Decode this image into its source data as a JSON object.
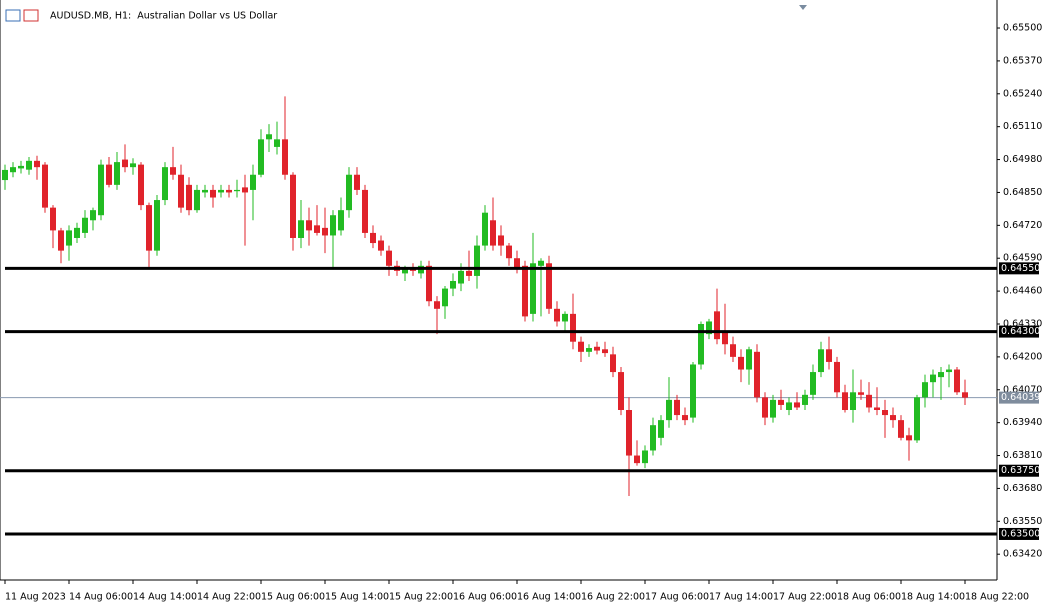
{
  "chart_data": {
    "type": "candlestick",
    "title": "AUDUSD.MB, H1:  Australian Dollar vs US Dollar",
    "categories": [
      "11 Aug 2023",
      null,
      null,
      null,
      null,
      null,
      null,
      null,
      "14 Aug 06:00",
      null,
      null,
      null,
      null,
      null,
      null,
      null,
      "14 Aug 14:00",
      null,
      null,
      null,
      null,
      null,
      null,
      null,
      "14 Aug 22:00",
      null,
      null,
      null,
      null,
      null,
      null,
      null,
      "15 Aug 06:00",
      null,
      null,
      null,
      null,
      null,
      null,
      null,
      "15 Aug 14:00",
      null,
      null,
      null,
      null,
      null,
      null,
      null,
      "15 Aug 22:00",
      null,
      null,
      null,
      null,
      null,
      null,
      null,
      "16 Aug 06:00",
      null,
      null,
      null,
      null,
      null,
      null,
      null,
      "16 Aug 14:00",
      null,
      null,
      null,
      null,
      null,
      null,
      null,
      "16 Aug 22:00",
      null,
      null,
      null,
      null,
      null,
      null,
      null,
      "17 Aug 06:00",
      null,
      null,
      null,
      null,
      null,
      null,
      null,
      "17 Aug 14:00",
      null,
      null,
      null,
      null,
      null,
      null,
      null,
      "17 Aug 22:00",
      null,
      null,
      null,
      null,
      null,
      null,
      null,
      "18 Aug 06:00",
      null,
      null,
      null,
      null,
      null,
      null,
      null,
      "18 Aug 14:00",
      null,
      null,
      null,
      null,
      null,
      null,
      null,
      "18 Aug 22:00"
    ],
    "open": [
      0.64899,
      0.6493,
      0.64945,
      0.6494,
      0.64975,
      0.6496,
      0.6479,
      0.647,
      0.6464,
      0.6467,
      0.6469,
      0.6474,
      0.6476,
      0.6496,
      0.6488,
      0.6498,
      0.6495,
      0.6496,
      0.648,
      0.6462,
      0.6482,
      0.6495,
      0.6492,
      0.6488,
      0.6478,
      0.6485,
      0.6486,
      0.6485,
      0.6486,
      0.64855,
      0.6487,
      0.6486,
      0.6492,
      0.6506,
      0.6503,
      0.6506,
      0.6492,
      0.6467,
      0.6474,
      0.6472,
      0.6471,
      0.6468,
      0.647,
      0.6478,
      0.6492,
      0.6486,
      0.6469,
      0.6466,
      0.6462,
      0.6456,
      0.6453,
      0.6455,
      0.6453,
      0.6456,
      0.6442,
      0.644,
      0.6447,
      0.6449,
      0.6454,
      0.6452,
      0.6464,
      0.6474,
      0.6468,
      0.6464,
      0.6459,
      0.6456,
      0.6437,
      0.6456,
      0.6457,
      0.6439,
      0.6434,
      0.6437,
      0.6426,
      0.6422,
      0.6424,
      0.6423,
      0.6421,
      0.6414,
      0.6399,
      0.6381,
      0.6378,
      0.6383,
      0.6388,
      0.6395,
      0.6403,
      0.6397,
      0.6396,
      0.6417,
      0.6429,
      0.6438,
      0.643,
      0.6425,
      0.642,
      0.6415,
      0.6422,
      0.6404,
      0.6396,
      0.6403,
      0.6399,
      0.6402,
      0.6401,
      0.6405,
      0.6414,
      0.6423,
      0.6418,
      0.6406,
      0.6399,
      0.6406,
      0.6405,
      0.64,
      0.6399,
      0.6397,
      0.6395,
      0.6389,
      0.6387,
      0.6404,
      0.641,
      0.6412,
      0.6414,
      0.6415,
      0.6406
    ],
    "high": [
      0.6496,
      0.6497,
      0.64975,
      0.6499,
      0.64995,
      0.6497,
      0.648,
      0.6471,
      0.6472,
      0.6473,
      0.6478,
      0.6479,
      0.6498,
      0.6499,
      0.6501,
      0.6504,
      0.64985,
      0.6497,
      0.6481,
      0.6484,
      0.6497,
      0.6503,
      0.6496,
      0.6491,
      0.6488,
      0.6488,
      0.6488,
      0.6488,
      0.6488,
      0.649,
      0.6492,
      0.6496,
      0.651,
      0.6512,
      0.6513,
      0.6523,
      0.6493,
      0.6482,
      0.6479,
      0.648,
      0.6479,
      0.6478,
      0.6483,
      0.6495,
      0.6495,
      0.6488,
      0.6472,
      0.6468,
      0.6464,
      0.6458,
      0.6456,
      0.6457,
      0.6458,
      0.6458,
      0.6444,
      0.6448,
      0.6453,
      0.6457,
      0.6462,
      0.6468,
      0.648,
      0.6483,
      0.6472,
      0.6465,
      0.6462,
      0.6458,
      0.6469,
      0.6459,
      0.646,
      0.6442,
      0.6438,
      0.6445,
      0.6428,
      0.6425,
      0.6426,
      0.6426,
      0.6424,
      0.6416,
      0.6404,
      0.6387,
      0.6385,
      0.6396,
      0.6397,
      0.6412,
      0.6405,
      0.64,
      0.6418,
      0.6434,
      0.6435,
      0.6447,
      0.6441,
      0.6428,
      0.6423,
      0.6424,
      0.6425,
      0.6406,
      0.6405,
      0.6407,
      0.6404,
      0.6406,
      0.6407,
      0.6417,
      0.6426,
      0.6428,
      0.642,
      0.6409,
      0.6415,
      0.6411,
      0.641,
      0.6408,
      0.6403,
      0.64,
      0.6397,
      0.6392,
      0.6405,
      0.6413,
      0.6415,
      0.6416,
      0.6417,
      0.6416,
      0.6411
    ],
    "low": [
      0.6486,
      0.6491,
      0.64925,
      0.6492,
      0.649,
      0.6477,
      0.6463,
      0.6457,
      0.6458,
      0.6465,
      0.6467,
      0.647,
      0.6474,
      0.6487,
      0.6486,
      0.6493,
      0.6492,
      0.6478,
      0.6455,
      0.646,
      0.648,
      0.649,
      0.6477,
      0.6476,
      0.6477,
      0.6483,
      0.6479,
      0.6483,
      0.6483,
      0.6483,
      0.6464,
      0.6474,
      0.6491,
      0.6501,
      0.65,
      0.649,
      0.6462,
      0.6463,
      0.6464,
      0.6468,
      0.6461,
      0.6455,
      0.6468,
      0.6475,
      0.6484,
      0.6467,
      0.6463,
      0.646,
      0.6452,
      0.6452,
      0.645,
      0.6452,
      0.6451,
      0.644,
      0.6429,
      0.6435,
      0.6444,
      0.6446,
      0.645,
      0.6447,
      0.6462,
      0.6462,
      0.646,
      0.6456,
      0.6453,
      0.6434,
      0.6434,
      0.6436,
      0.6437,
      0.6432,
      0.643,
      0.6423,
      0.6418,
      0.642,
      0.6421,
      0.642,
      0.6412,
      0.6397,
      0.6365,
      0.6377,
      0.6376,
      0.6381,
      0.6385,
      0.6392,
      0.6395,
      0.6393,
      0.6394,
      0.6415,
      0.6427,
      0.6425,
      0.6421,
      0.6418,
      0.641,
      0.6409,
      0.6402,
      0.6393,
      0.6394,
      0.6399,
      0.6397,
      0.6399,
      0.6399,
      0.6403,
      0.6412,
      0.6415,
      0.6404,
      0.6398,
      0.6394,
      0.6403,
      0.6398,
      0.6397,
      0.6388,
      0.6392,
      0.6387,
      0.6379,
      0.6386,
      0.64,
      0.6404,
      0.6403,
      0.6408,
      0.6405,
      0.6401
    ],
    "close": [
      0.64939,
      0.6495,
      0.64955,
      0.64975,
      0.6495,
      0.6479,
      0.647,
      0.6462,
      0.647,
      0.6471,
      0.6475,
      0.6478,
      0.6496,
      0.6488,
      0.6497,
      0.6495,
      0.64965,
      0.648,
      0.6462,
      0.6482,
      0.6495,
      0.6492,
      0.6479,
      0.6478,
      0.6486,
      0.6486,
      0.6483,
      0.6486,
      0.6485,
      0.6486,
      0.6485,
      0.6492,
      0.6506,
      0.6508,
      0.6506,
      0.6492,
      0.6467,
      0.6474,
      0.647,
      0.6469,
      0.6468,
      0.6476,
      0.6478,
      0.6492,
      0.6486,
      0.6469,
      0.6465,
      0.6462,
      0.6456,
      0.6454,
      0.6455,
      0.6454,
      0.6456,
      0.6442,
      0.6439,
      0.6447,
      0.645,
      0.6454,
      0.6452,
      0.6464,
      0.6477,
      0.6464,
      0.6464,
      0.6459,
      0.6455,
      0.6436,
      0.6457,
      0.6458,
      0.6439,
      0.6434,
      0.6437,
      0.6426,
      0.6422,
      0.64235,
      0.64225,
      0.64215,
      0.6414,
      0.6399,
      0.6381,
      0.6378,
      0.6383,
      0.6393,
      0.6395,
      0.6403,
      0.6397,
      0.6395,
      0.6417,
      0.6433,
      0.6434,
      0.6427,
      0.6425,
      0.642,
      0.6415,
      0.6423,
      0.6404,
      0.6396,
      0.6403,
      0.6401,
      0.6402,
      0.64,
      0.6405,
      0.6414,
      0.6423,
      0.6418,
      0.6406,
      0.6399,
      0.6406,
      0.6405,
      0.64,
      0.6399,
      0.6397,
      0.6395,
      0.6388,
      0.6387,
      0.6404,
      0.641,
      0.6413,
      0.6414,
      0.6415,
      0.6406,
      0.64039
    ],
    "up_color": "#22bb22",
    "down_color": "#e0232b",
    "ylim": [
      0.63318,
      0.65591
    ],
    "yticks": [
      {
        "value": 0.655,
        "label": "0.65500"
      },
      {
        "value": 0.6537,
        "label": "0.65370"
      },
      {
        "value": 0.6524,
        "label": "0.65240"
      },
      {
        "value": 0.6511,
        "label": "0.65110"
      },
      {
        "value": 0.6498,
        "label": "0.64980"
      },
      {
        "value": 0.6485,
        "label": "0.64850"
      },
      {
        "value": 0.6472,
        "label": "0.64720"
      },
      {
        "value": 0.6459,
        "label": "0.64590"
      },
      {
        "value": 0.6446,
        "label": "0.64460"
      },
      {
        "value": 0.6433,
        "label": "0.64330"
      },
      {
        "value": 0.642,
        "label": "0.64200"
      },
      {
        "value": 0.6407,
        "label": "0.64070"
      },
      {
        "value": 0.6394,
        "label": "0.63940"
      },
      {
        "value": 0.6381,
        "label": "0.63810"
      },
      {
        "value": 0.6368,
        "label": "0.63680"
      },
      {
        "value": 0.6355,
        "label": "0.63550"
      },
      {
        "value": 0.6342,
        "label": "0.63420"
      }
    ],
    "levels": [
      {
        "value": 0.6455,
        "label": "0.64550"
      },
      {
        "value": 0.643,
        "label": "0.64300"
      },
      {
        "value": 0.6375,
        "label": "0.63750"
      },
      {
        "value": 0.635,
        "label": "0.63500"
      }
    ],
    "current_price": {
      "value": 0.64039,
      "label": "0.64039"
    }
  }
}
